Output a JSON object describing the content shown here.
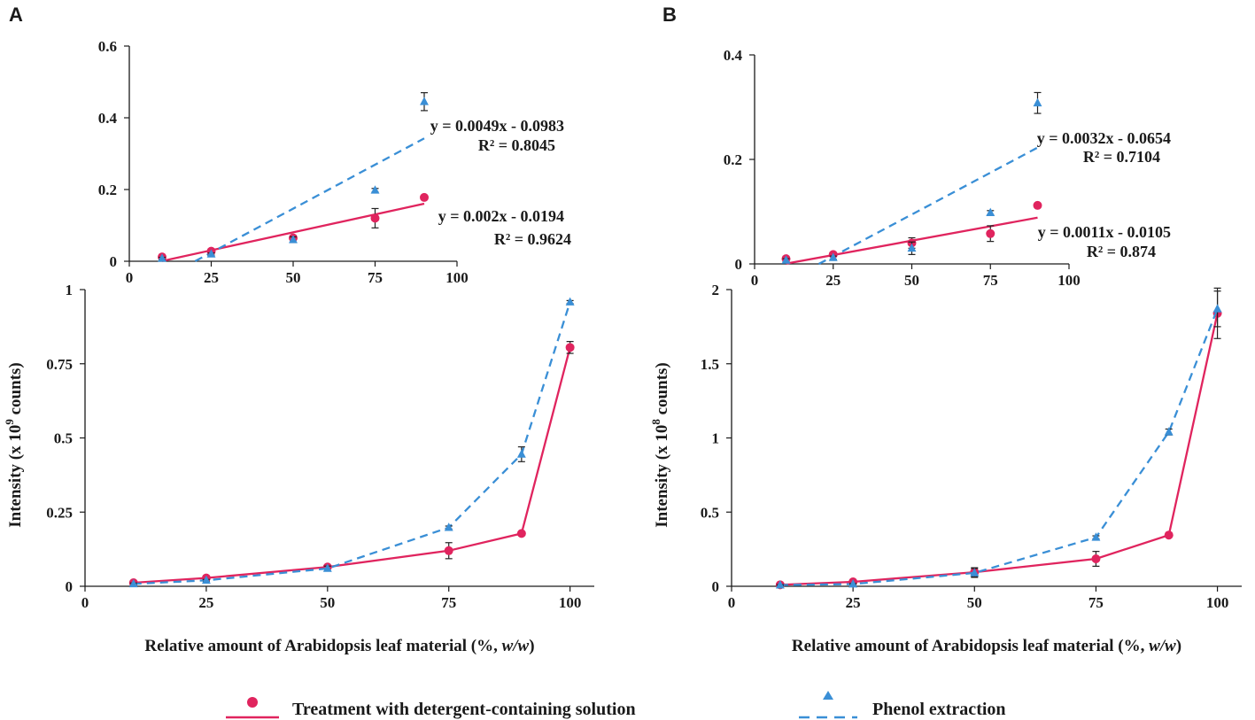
{
  "colors": {
    "detergent": "#e0245e",
    "phenol": "#3a8fd6",
    "axis": "#1a1a1a"
  },
  "legend": {
    "detergent": "Treatment with detergent-containing solution",
    "phenol": "Phenol extraction"
  },
  "chart_data": [
    {
      "panel": "A",
      "type": "line",
      "xlabel": "Relative amount of Arabidopsis leaf material (%, w/w)",
      "xlabel_main": "Relative amount of Arabidopsis leaf material (%, ",
      "xlabel_italic": "w/w",
      "xlabel_end": ")",
      "ylabel": "Intensity (x 10^9 counts)",
      "ylabel_main": "Intensity (x 10",
      "ylabel_exp": "9",
      "ylabel_end": " counts)",
      "xlim": [
        0,
        105
      ],
      "ylim": [
        0,
        1
      ],
      "xticks": [
        "0",
        "25",
        "50",
        "75",
        "100"
      ],
      "yticks": [
        "0",
        "0.25",
        "0.5",
        "0.75",
        "1"
      ],
      "x": [
        10,
        25,
        50,
        75,
        90,
        100
      ],
      "series": [
        {
          "name": "Treatment with detergent-containing solution",
          "key": "detergent",
          "marker": "circle",
          "line": "solid",
          "values": [
            0.012,
            0.028,
            0.065,
            0.12,
            0.178,
            0.805
          ],
          "errors": [
            0.004,
            0.004,
            0.006,
            0.027,
            0.004,
            0.02
          ]
        },
        {
          "name": "Phenol extraction",
          "key": "phenol",
          "marker": "triangle",
          "line": "dashed",
          "values": [
            0.008,
            0.02,
            0.06,
            0.198,
            0.445,
            0.958
          ],
          "errors": [
            0.003,
            0.003,
            0.008,
            0.005,
            0.025,
            0.005
          ]
        }
      ],
      "inset": {
        "xlim": [
          0,
          100
        ],
        "ylim": [
          0,
          0.6
        ],
        "xticks": [
          "0",
          "25",
          "50",
          "75",
          "100"
        ],
        "yticks": [
          "0",
          "0.2",
          "0.4",
          "0.6"
        ],
        "x": [
          10,
          25,
          50,
          75,
          90
        ],
        "series": [
          {
            "key": "detergent",
            "values": [
              0.012,
              0.028,
              0.065,
              0.12,
              0.178
            ],
            "errors": [
              0.004,
              0.004,
              0.006,
              0.027,
              0.004
            ],
            "trend": {
              "slope": 0.002,
              "intercept": -0.0194,
              "x_range": [
                10,
                90
              ]
            },
            "equation": "y = 0.002x - 0.0194",
            "r2": "R² = 0.9624"
          },
          {
            "key": "phenol",
            "values": [
              0.008,
              0.02,
              0.06,
              0.198,
              0.445
            ],
            "errors": [
              0.003,
              0.003,
              0.008,
              0.005,
              0.025
            ],
            "trend": {
              "slope": 0.0049,
              "intercept": -0.0983,
              "x_range": [
                20.1,
                90
              ]
            },
            "equation": "y = 0.0049x - 0.0983",
            "r2": "R² = 0.8045"
          }
        ]
      }
    },
    {
      "panel": "B",
      "type": "line",
      "xlabel": "Relative amount of Arabidopsis leaf material (%, w/w)",
      "xlabel_main": "Relative amount of Arabidopsis leaf material (%, ",
      "xlabel_italic": "w/w",
      "xlabel_end": ")",
      "ylabel": "Intensity (x 10^8 counts)",
      "ylabel_main": "Intensity (x 10",
      "ylabel_exp": "8",
      "ylabel_end": " counts)",
      "xlim": [
        0,
        105
      ],
      "ylim": [
        0,
        2
      ],
      "xticks": [
        "0",
        "25",
        "50",
        "75",
        "100"
      ],
      "yticks": [
        "0",
        "0.5",
        "1",
        "1.5",
        "2"
      ],
      "x": [
        10,
        25,
        50,
        75,
        90,
        100
      ],
      "series": [
        {
          "name": "Treatment with detergent-containing solution",
          "key": "detergent",
          "marker": "circle",
          "line": "solid",
          "values": [
            0.01,
            0.03,
            0.095,
            0.185,
            0.345,
            1.84
          ],
          "errors": [
            0.005,
            0.005,
            0.03,
            0.05,
            0.01,
            0.17
          ]
        },
        {
          "name": "Phenol extraction",
          "key": "phenol",
          "marker": "triangle",
          "line": "dashed",
          "values": [
            0.008,
            0.015,
            0.09,
            0.33,
            1.04,
            1.87
          ],
          "errors": [
            0.004,
            0.004,
            0.03,
            0.01,
            0.02,
            0.12
          ]
        }
      ],
      "inset": {
        "xlim": [
          0,
          100
        ],
        "ylim": [
          0,
          0.4
        ],
        "xticks": [
          "0",
          "25",
          "50",
          "75",
          "100"
        ],
        "yticks": [
          "0",
          "0.2",
          "0.4"
        ],
        "x": [
          10,
          25,
          50,
          75,
          90
        ],
        "series": [
          {
            "key": "detergent",
            "values": [
              0.01,
              0.018,
              0.04,
              0.058,
              0.112
            ],
            "errors": [
              0.004,
              0.004,
              0.01,
              0.015,
              0.003
            ],
            "trend": {
              "slope": 0.0011,
              "intercept": -0.0105,
              "x_range": [
                10,
                90
              ]
            },
            "equation": "y = 0.0011x - 0.0105",
            "r2": "R² = 0.874"
          },
          {
            "key": "phenol",
            "values": [
              0.007,
              0.012,
              0.03,
              0.098,
              0.308
            ],
            "errors": [
              0.003,
              0.003,
              0.012,
              0.004,
              0.02
            ],
            "trend": {
              "slope": 0.0032,
              "intercept": -0.0654,
              "x_range": [
                20.4,
                90
              ]
            },
            "equation": "y = 0.0032x - 0.0654",
            "r2": "R² = 0.7104"
          }
        ]
      }
    }
  ]
}
